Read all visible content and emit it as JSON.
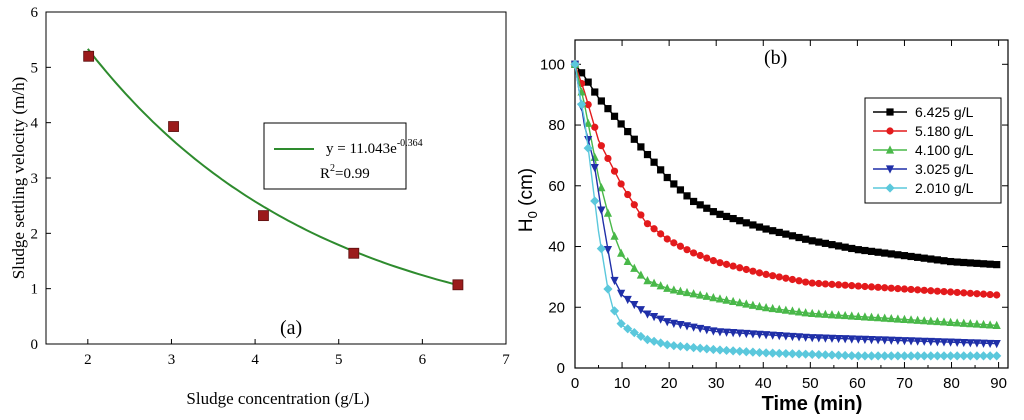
{
  "colors": {
    "fit_line": "#2e8b2e",
    "panel_a_marker": "#9b1b1b",
    "axis": "#000000"
  },
  "chart_data": [
    {
      "type": "scatter",
      "panel_label": "(a)",
      "xlabel": "Sludge concentration (g/L)",
      "ylabel": "Sludge settling velocity (m/h)",
      "xlim": [
        1.5,
        7
      ],
      "ylim": [
        0,
        6
      ],
      "x_ticks": [
        "2",
        "3",
        "4",
        "5",
        "6",
        "7"
      ],
      "y_ticks": [
        "0",
        "1",
        "2",
        "3",
        "4",
        "5",
        "6"
      ],
      "points": {
        "x": [
          2.01,
          3.025,
          4.1,
          5.18,
          6.425
        ],
        "y": [
          5.2,
          3.93,
          2.32,
          1.64,
          1.07
        ]
      },
      "fit": {
        "a": 11.043,
        "b": -0.364,
        "equation_prefix": "y = 11.043e",
        "equation_exponent": "-0.364",
        "r2_text": "R",
        "r2_sup": "2",
        "r2_value": "=0.99"
      }
    },
    {
      "type": "scatter",
      "panel_label": "(b)",
      "xlabel": "Time (min)",
      "ylabel_main": "H",
      "ylabel_sub": "0",
      "ylabel_unit": " (cm)",
      "xlim": [
        0,
        92
      ],
      "ylim": [
        0,
        108
      ],
      "x_ticks": [
        "0",
        "10",
        "20",
        "30",
        "40",
        "50",
        "60",
        "70",
        "80",
        "90"
      ],
      "y_ticks": [
        "0",
        "20",
        "40",
        "60",
        "80",
        "100"
      ],
      "legend_position": "top-right",
      "series": [
        {
          "name": "6.425 g/L",
          "color": "#000000",
          "marker": "square",
          "time": [
            0,
            2,
            5,
            10,
            15,
            20,
            25,
            30,
            40,
            50,
            60,
            70,
            80,
            90
          ],
          "height": [
            100,
            96,
            89,
            80,
            71,
            62,
            55,
            51,
            46,
            42,
            39,
            37,
            35,
            34
          ]
        },
        {
          "name": "5.180 g/L",
          "color": "#e31a1c",
          "marker": "circle",
          "time": [
            0,
            2,
            5,
            10,
            15,
            20,
            25,
            30,
            40,
            50,
            60,
            70,
            80,
            90
          ],
          "height": [
            100,
            91,
            75,
            60,
            48,
            42,
            38,
            35,
            31,
            28,
            27,
            26,
            25,
            24
          ]
        },
        {
          "name": "4.100 g/L",
          "color": "#49b849",
          "marker": "triangle-up",
          "time": [
            0,
            2,
            5,
            8,
            10,
            15,
            20,
            30,
            40,
            50,
            60,
            70,
            80,
            90
          ],
          "height": [
            100,
            87,
            63,
            45,
            37,
            29,
            26,
            23,
            20,
            18,
            17,
            16,
            15,
            14
          ]
        },
        {
          "name": "3.025 g/L",
          "color": "#1f2fa8",
          "marker": "triangle-down",
          "time": [
            0,
            2,
            4,
            6,
            8,
            10,
            15,
            20,
            30,
            40,
            50,
            60,
            70,
            80,
            90
          ],
          "height": [
            100,
            80,
            68,
            48,
            30,
            24,
            18,
            15,
            12,
            11,
            10,
            9.5,
            9,
            8.5,
            8
          ]
        },
        {
          "name": "2.010 g/L",
          "color": "#5bc8dc",
          "marker": "diamond",
          "time": [
            0,
            1,
            2,
            3,
            5,
            7,
            8,
            10,
            15,
            20,
            30,
            40,
            50,
            60,
            70,
            80,
            90
          ],
          "height": [
            100,
            90,
            82,
            70,
            45,
            26,
            20,
            14,
            9.5,
            7.5,
            6,
            5,
            4.5,
            4,
            4,
            4,
            4
          ]
        }
      ]
    }
  ]
}
